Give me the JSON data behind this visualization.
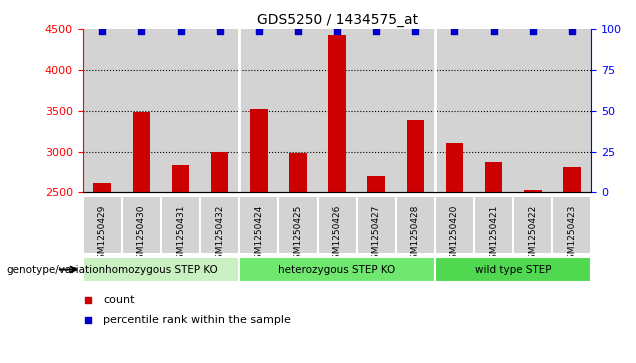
{
  "title": "GDS5250 / 1434575_at",
  "samples": [
    "GSM1250429",
    "GSM1250430",
    "GSM1250431",
    "GSM1250432",
    "GSM1250424",
    "GSM1250425",
    "GSM1250426",
    "GSM1250427",
    "GSM1250428",
    "GSM1250420",
    "GSM1250421",
    "GSM1250422",
    "GSM1250423"
  ],
  "counts": [
    2620,
    3480,
    2840,
    3000,
    3520,
    2980,
    4430,
    2700,
    3390,
    3110,
    2870,
    2530,
    2810
  ],
  "percentiles": [
    99,
    99,
    99,
    99,
    99,
    99,
    99,
    99,
    99,
    99,
    99,
    99,
    99
  ],
  "ylim_left": [
    2500,
    4500
  ],
  "ylim_right": [
    0,
    100
  ],
  "yticks_left": [
    2500,
    3000,
    3500,
    4000,
    4500
  ],
  "yticks_right": [
    0,
    25,
    50,
    75,
    100
  ],
  "groups": [
    {
      "label": "homozygous STEP KO",
      "start": 0,
      "end": 4,
      "color": "#c8f0c0"
    },
    {
      "label": "heterozygous STEP KO",
      "start": 4,
      "end": 9,
      "color": "#70e870"
    },
    {
      "label": "wild type STEP",
      "start": 9,
      "end": 13,
      "color": "#50d850"
    }
  ],
  "bar_color": "#cc0000",
  "dot_color": "#0000cc",
  "bar_width": 0.45,
  "col_bg_color": "#d3d3d3",
  "plot_bg_color": "#ffffff",
  "grid_color": "#000000",
  "legend_count_color": "#cc0000",
  "legend_dot_color": "#0000cc",
  "genotype_label": "genotype/variation"
}
